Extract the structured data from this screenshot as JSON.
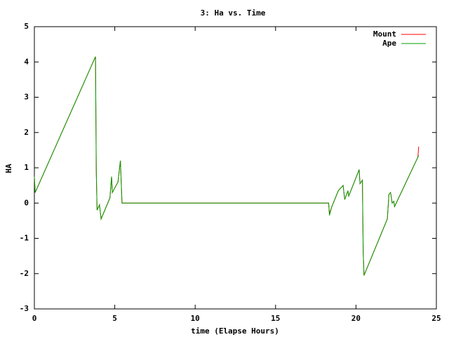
{
  "chart_data": {
    "type": "line",
    "title": "3: Ha vs. Time",
    "x_label": "time (Elapse Hours)",
    "y_label": "HA",
    "xlim": [
      0,
      25
    ],
    "ylim": [
      -3,
      5
    ],
    "xticks": [
      0,
      5,
      10,
      15,
      20,
      25
    ],
    "yticks": [
      -3,
      -2,
      -1,
      0,
      1,
      2,
      3,
      4,
      5
    ],
    "legend": "top-right",
    "series": [
      {
        "name": "Mount",
        "color": "#ff0000",
        "x": [
          0,
          0.05,
          3.8,
          3.85,
          3.9,
          4.05,
          4.15,
          4.7,
          4.8,
          4.85,
          5.2,
          5.35,
          5.45,
          18.3,
          18.35,
          18.5,
          18.9,
          19.2,
          19.3,
          19.5,
          19.55,
          20.2,
          20.25,
          20.4,
          20.45,
          20.5,
          21.95,
          22.05,
          22.15,
          22.25,
          22.35,
          22.4,
          23.85,
          23.9
        ],
        "values": [
          0.75,
          0.3,
          4.15,
          0.9,
          -0.2,
          -0.05,
          -0.45,
          0.15,
          0.75,
          0.3,
          0.6,
          1.2,
          0,
          0,
          -0.3,
          -0.1,
          0.35,
          0.5,
          0.1,
          0.35,
          0.2,
          0.95,
          0.55,
          0.65,
          -1.4,
          -2.05,
          -0.45,
          0.25,
          0.3,
          0,
          0.05,
          -0.1,
          1.3,
          1.6
        ]
      },
      {
        "name": "Ape",
        "color": "#00a000",
        "x": [
          0,
          0.05,
          3.8,
          3.85,
          3.9,
          4.05,
          4.15,
          4.7,
          4.8,
          4.85,
          5.2,
          5.35,
          5.45,
          18.3,
          18.35,
          18.5,
          18.9,
          19.2,
          19.3,
          19.5,
          19.55,
          20.2,
          20.25,
          20.4,
          20.45,
          20.5,
          21.95,
          22.05,
          22.15,
          22.25,
          22.35,
          22.4,
          23.9
        ],
        "values": [
          0.75,
          0.3,
          4.15,
          0.9,
          -0.2,
          -0.05,
          -0.45,
          0.15,
          0.75,
          0.3,
          0.6,
          1.2,
          0,
          0,
          -0.35,
          -0.1,
          0.35,
          0.5,
          0.1,
          0.35,
          0.2,
          0.95,
          0.55,
          0.65,
          -1.4,
          -2.05,
          -0.45,
          0.25,
          0.3,
          0,
          0.05,
          -0.1,
          1.35
        ]
      }
    ]
  }
}
